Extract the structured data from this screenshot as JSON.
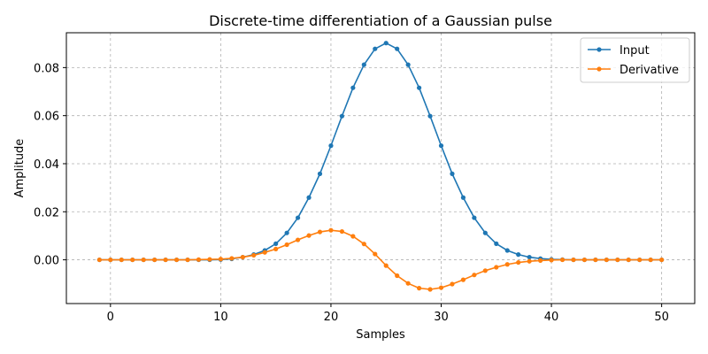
{
  "chart_data": {
    "type": "line",
    "title": "Discrete-time differentiation of a Gaussian pulse",
    "xlabel": "Samples",
    "ylabel": "Amplitude",
    "xlim": [
      -4,
      53
    ],
    "ylim": [
      -0.0182,
      0.0945
    ],
    "xticks": [
      0,
      10,
      20,
      30,
      40,
      50
    ],
    "yticks": [
      0.0,
      0.02,
      0.04,
      0.06,
      0.08
    ],
    "ytick_labels": [
      "0.00",
      "0.02",
      "0.04",
      "0.06",
      "0.08"
    ],
    "grid": true,
    "legend_position": "top-right",
    "series": [
      {
        "name": "Input",
        "color": "#1f77b4",
        "marker": "circle",
        "x": [
          -1,
          0,
          1,
          2,
          3,
          4,
          5,
          6,
          7,
          8,
          9,
          10,
          11,
          12,
          13,
          14,
          15,
          16,
          17,
          18,
          19,
          20,
          21,
          22,
          23,
          24,
          25,
          26,
          27,
          28,
          29,
          30,
          31,
          32,
          33,
          34,
          35,
          36,
          37,
          38,
          39,
          40,
          41,
          42,
          43,
          44,
          45,
          46,
          47,
          48,
          49,
          50
        ],
        "values": [
          0,
          0,
          0,
          0,
          0,
          0,
          0,
          0,
          0,
          0,
          0,
          0.0001,
          0.0004,
          0.0011,
          0.0022,
          0.0039,
          0.0067,
          0.0112,
          0.0175,
          0.0259,
          0.0358,
          0.0475,
          0.0598,
          0.0716,
          0.0812,
          0.0878,
          0.0902,
          0.0878,
          0.0812,
          0.0716,
          0.0598,
          0.0475,
          0.0358,
          0.0259,
          0.0175,
          0.0112,
          0.0067,
          0.0039,
          0.0022,
          0.0011,
          0.0005,
          0.0002,
          0.0001,
          0,
          0,
          0,
          0,
          0,
          0,
          0,
          0,
          0
        ]
      },
      {
        "name": "Derivative",
        "color": "#ff7f0e",
        "marker": "circle",
        "x": [
          -1,
          0,
          1,
          2,
          3,
          4,
          5,
          6,
          7,
          8,
          9,
          10,
          11,
          12,
          13,
          14,
          15,
          16,
          17,
          18,
          19,
          20,
          21,
          22,
          23,
          24,
          25,
          26,
          27,
          28,
          29,
          30,
          31,
          32,
          33,
          34,
          35,
          36,
          37,
          38,
          39,
          40,
          41,
          42,
          43,
          44,
          45,
          46,
          47,
          48,
          49,
          50
        ],
        "values": [
          0,
          0,
          0,
          0,
          0,
          0,
          0,
          0,
          0,
          0.0001,
          0.0002,
          0.0003,
          0.0006,
          0.0011,
          0.0019,
          0.0031,
          0.0045,
          0.0063,
          0.0083,
          0.0101,
          0.0116,
          0.0123,
          0.0118,
          0.0098,
          0.0066,
          0.0024,
          -0.0024,
          -0.0066,
          -0.0098,
          -0.0118,
          -0.0123,
          -0.0116,
          -0.0101,
          -0.0083,
          -0.0063,
          -0.0045,
          -0.0031,
          -0.0019,
          -0.0011,
          -0.0006,
          -0.0003,
          -0.0001,
          0,
          0,
          0,
          0,
          0,
          0,
          0,
          0,
          0,
          0
        ]
      }
    ]
  }
}
